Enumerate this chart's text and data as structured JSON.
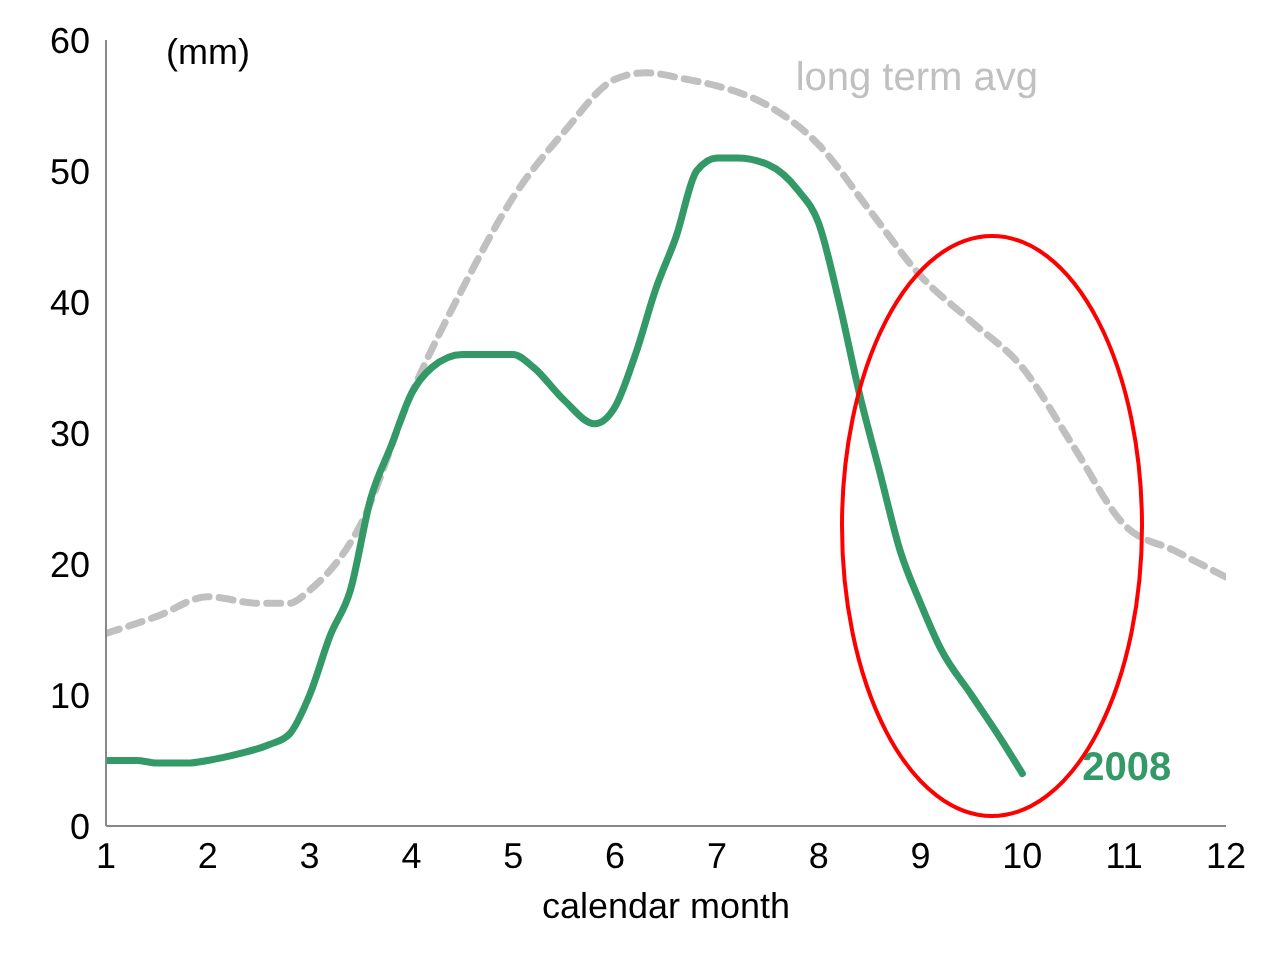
{
  "chart_data": {
    "type": "line",
    "ylabel": "(mm)",
    "xlabel": "calendar month",
    "xlim": [
      1,
      12
    ],
    "xticks": [
      1,
      2,
      3,
      4,
      5,
      6,
      7,
      8,
      9,
      10,
      11,
      12
    ],
    "ylim": [
      0,
      60
    ],
    "yticks": [
      0,
      10,
      20,
      30,
      40,
      50,
      60
    ],
    "marker": "none",
    "series": [
      {
        "name": "long term avg",
        "color": "#c0c0c0",
        "line_style": "dashed",
        "x": [
          1,
          1.5,
          2,
          2.5,
          2.8,
          3,
          3.5,
          4,
          4.5,
          5,
          5.5,
          6,
          6.3,
          6.7,
          7,
          7.5,
          8,
          8.5,
          9,
          9.5,
          10,
          10.5,
          11,
          11.5,
          12
        ],
        "values": [
          14.7,
          16,
          17.5,
          17,
          17,
          18,
          23,
          33,
          41,
          48,
          53,
          57,
          57.5,
          57,
          56.5,
          55,
          52,
          47,
          42,
          38.5,
          35,
          29,
          23,
          21,
          19
        ]
      },
      {
        "name": "2008",
        "color": "#339966",
        "line_style": "solid",
        "x": [
          1,
          1.3,
          1.5,
          1.8,
          2,
          2.3,
          2.6,
          2.8,
          3,
          3.2,
          3.4,
          3.6,
          3.8,
          4,
          4.2,
          4.5,
          5,
          5.2,
          5.5,
          5.8,
          6,
          6.2,
          6.4,
          6.6,
          6.8,
          7,
          7.2,
          7.5,
          7.8,
          8,
          8.2,
          8.4,
          8.6,
          8.8,
          9,
          9.2,
          9.5,
          9.8,
          10
        ],
        "values": [
          5,
          5,
          4.8,
          4.8,
          5,
          5.5,
          6.2,
          7,
          10,
          14.5,
          18,
          25,
          29,
          33,
          35,
          36,
          36,
          35,
          32.5,
          30.7,
          32,
          36,
          41,
          45,
          50,
          51,
          51,
          50.5,
          48.5,
          46,
          40,
          33,
          27,
          21,
          17,
          13.5,
          10,
          6.5,
          4
        ]
      }
    ]
  }
}
